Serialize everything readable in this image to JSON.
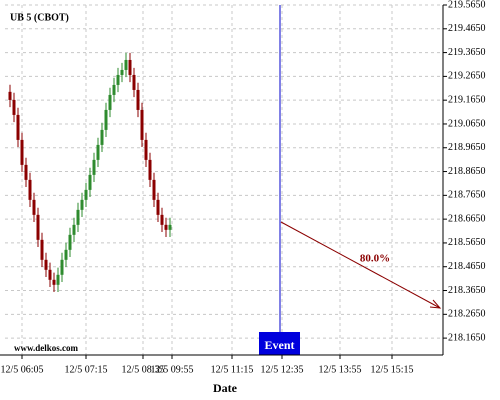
{
  "chart_data": {
    "type": "candlestick",
    "title": "UB 5 (CBOT)",
    "xlabel": "Date",
    "watermark": "www.delkos.com",
    "event_label": "Event",
    "annotation": "80.0%",
    "open": [
      219.2,
      219.166,
      219.103,
      218.998,
      218.893,
      218.83,
      218.746,
      218.683,
      218.578,
      218.494,
      218.452,
      218.41,
      218.389,
      218.431,
      218.494,
      218.536,
      218.599,
      218.641,
      218.704,
      218.746,
      218.788,
      218.851,
      218.914,
      218.977,
      219.04,
      219.124,
      219.187,
      219.229,
      219.271,
      219.292,
      219.334,
      219.271,
      219.208,
      219.124,
      218.998,
      218.914,
      218.83,
      218.746,
      218.683,
      218.641,
      218.62
    ],
    "high": [
      219.23,
      219.196,
      219.133,
      219.028,
      218.923,
      218.86,
      218.776,
      218.713,
      218.608,
      218.524,
      218.482,
      218.44,
      218.461,
      218.524,
      218.566,
      218.629,
      218.671,
      218.734,
      218.776,
      218.818,
      218.881,
      218.944,
      219.007,
      219.07,
      219.154,
      219.217,
      219.259,
      219.301,
      219.322,
      219.364,
      219.364,
      219.301,
      219.238,
      219.154,
      219.028,
      218.944,
      218.86,
      218.776,
      218.713,
      218.671,
      218.671
    ],
    "low": [
      219.136,
      219.073,
      218.968,
      218.863,
      218.8,
      218.716,
      218.653,
      218.548,
      218.464,
      218.422,
      218.38,
      218.359,
      218.359,
      218.401,
      218.464,
      218.506,
      218.569,
      218.611,
      218.674,
      218.716,
      218.758,
      218.821,
      218.884,
      218.947,
      219.01,
      219.094,
      219.157,
      219.199,
      219.241,
      219.262,
      219.241,
      219.178,
      219.094,
      218.968,
      218.884,
      218.8,
      218.716,
      218.653,
      218.611,
      218.59,
      218.59
    ],
    "close": [
      219.166,
      219.103,
      218.998,
      218.893,
      218.83,
      218.746,
      218.683,
      218.578,
      218.494,
      218.452,
      218.41,
      218.389,
      218.431,
      218.494,
      218.536,
      218.599,
      218.641,
      218.704,
      218.746,
      218.788,
      218.851,
      218.914,
      218.977,
      219.04,
      219.124,
      219.187,
      219.229,
      219.271,
      219.292,
      219.334,
      219.271,
      219.208,
      219.124,
      218.998,
      218.914,
      218.83,
      218.746,
      218.683,
      218.641,
      218.62,
      218.641
    ],
    "up_color": "#2e8b2e",
    "down_color": "#8b0000",
    "xlim": [
      -1.25,
      108.25
    ],
    "xticks": [
      {
        "value": 3,
        "label": "12/5 06:05"
      },
      {
        "value": 19,
        "label": "12/5 07:15"
      },
      {
        "value": 33.25,
        "label": "12/5 08:35"
      },
      {
        "value": 40.5,
        "label": "12/5 09:55"
      },
      {
        "value": 55.5,
        "label": "12/5 11:15"
      },
      {
        "value": 68,
        "label": "12/5 12:35"
      },
      {
        "value": 82.5,
        "label": "12/5 13:55"
      },
      {
        "value": 95.5,
        "label": "12/5 15:15"
      }
    ],
    "ylim": [
      218.094,
      219.565
    ],
    "yticks": [
      {
        "value": 219.565,
        "label": "219.5650"
      },
      {
        "value": 219.465,
        "label": "219.4650"
      },
      {
        "value": 219.365,
        "label": "219.3650"
      },
      {
        "value": 219.265,
        "label": "219.2650"
      },
      {
        "value": 219.165,
        "label": "219.1650"
      },
      {
        "value": 219.065,
        "label": "219.0650"
      },
      {
        "value": 218.965,
        "label": "218.9650"
      },
      {
        "value": 218.865,
        "label": "218.8650"
      },
      {
        "value": 218.765,
        "label": "218.7650"
      },
      {
        "value": 218.665,
        "label": "218.6650"
      },
      {
        "value": 218.565,
        "label": "218.5650"
      },
      {
        "value": 218.465,
        "label": "218.4650"
      },
      {
        "value": 218.365,
        "label": "218.3650"
      },
      {
        "value": 218.265,
        "label": "218.2650"
      },
      {
        "value": 218.165,
        "label": "218.1650"
      }
    ],
    "grid": true
  }
}
